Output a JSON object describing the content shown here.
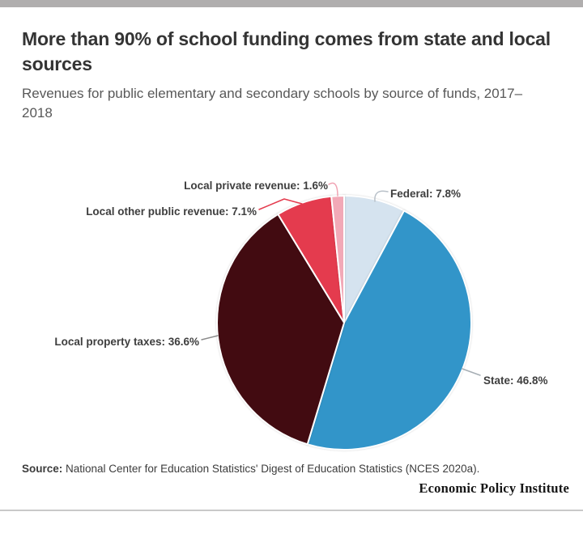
{
  "header": {
    "title": "More than 90% of school funding comes from state and local sources",
    "subtitle": "Revenues for public elementary and secondary schools by source of funds, 2017–2018"
  },
  "chart_data": {
    "type": "pie",
    "title": "More than 90% of school funding comes from state and local sources",
    "subtitle": "Revenues for public elementary and secondary schools by source of funds, 2017–2018",
    "start_angle_deg": 0,
    "direction": "clockwise",
    "legend": "none",
    "label_style": "outside-with-connector-lines",
    "slices": [
      {
        "label": "Federal",
        "value": 7.8,
        "display": "Federal: 7.8%",
        "color": "#d5e3ef",
        "connector_color": "#b9c1c9"
      },
      {
        "label": "State",
        "value": 46.8,
        "display": "State: 46.8%",
        "color": "#3295c9",
        "connector_color": "#a6aeb4"
      },
      {
        "label": "Local property taxes",
        "value": 36.6,
        "display": "Local property taxes: 36.6%",
        "color": "#420b11",
        "connector_color": "#8a8a8a"
      },
      {
        "label": "Local other public revenue",
        "value": 7.1,
        "display": "Local other public revenue: 7.1%",
        "color": "#e43b4e",
        "connector_color": "#e43b4e"
      },
      {
        "label": "Local private revenue",
        "value": 1.6,
        "display": "Local private revenue: 1.6%",
        "color": "#f2a9b7",
        "connector_color": "#f0a3b3"
      }
    ]
  },
  "footer": {
    "source_label": "Source:",
    "source_text": " National Center for Education Statistics' Digest of Education Statistics (NCES 2020a).",
    "brand": "Economic Policy Institute"
  }
}
